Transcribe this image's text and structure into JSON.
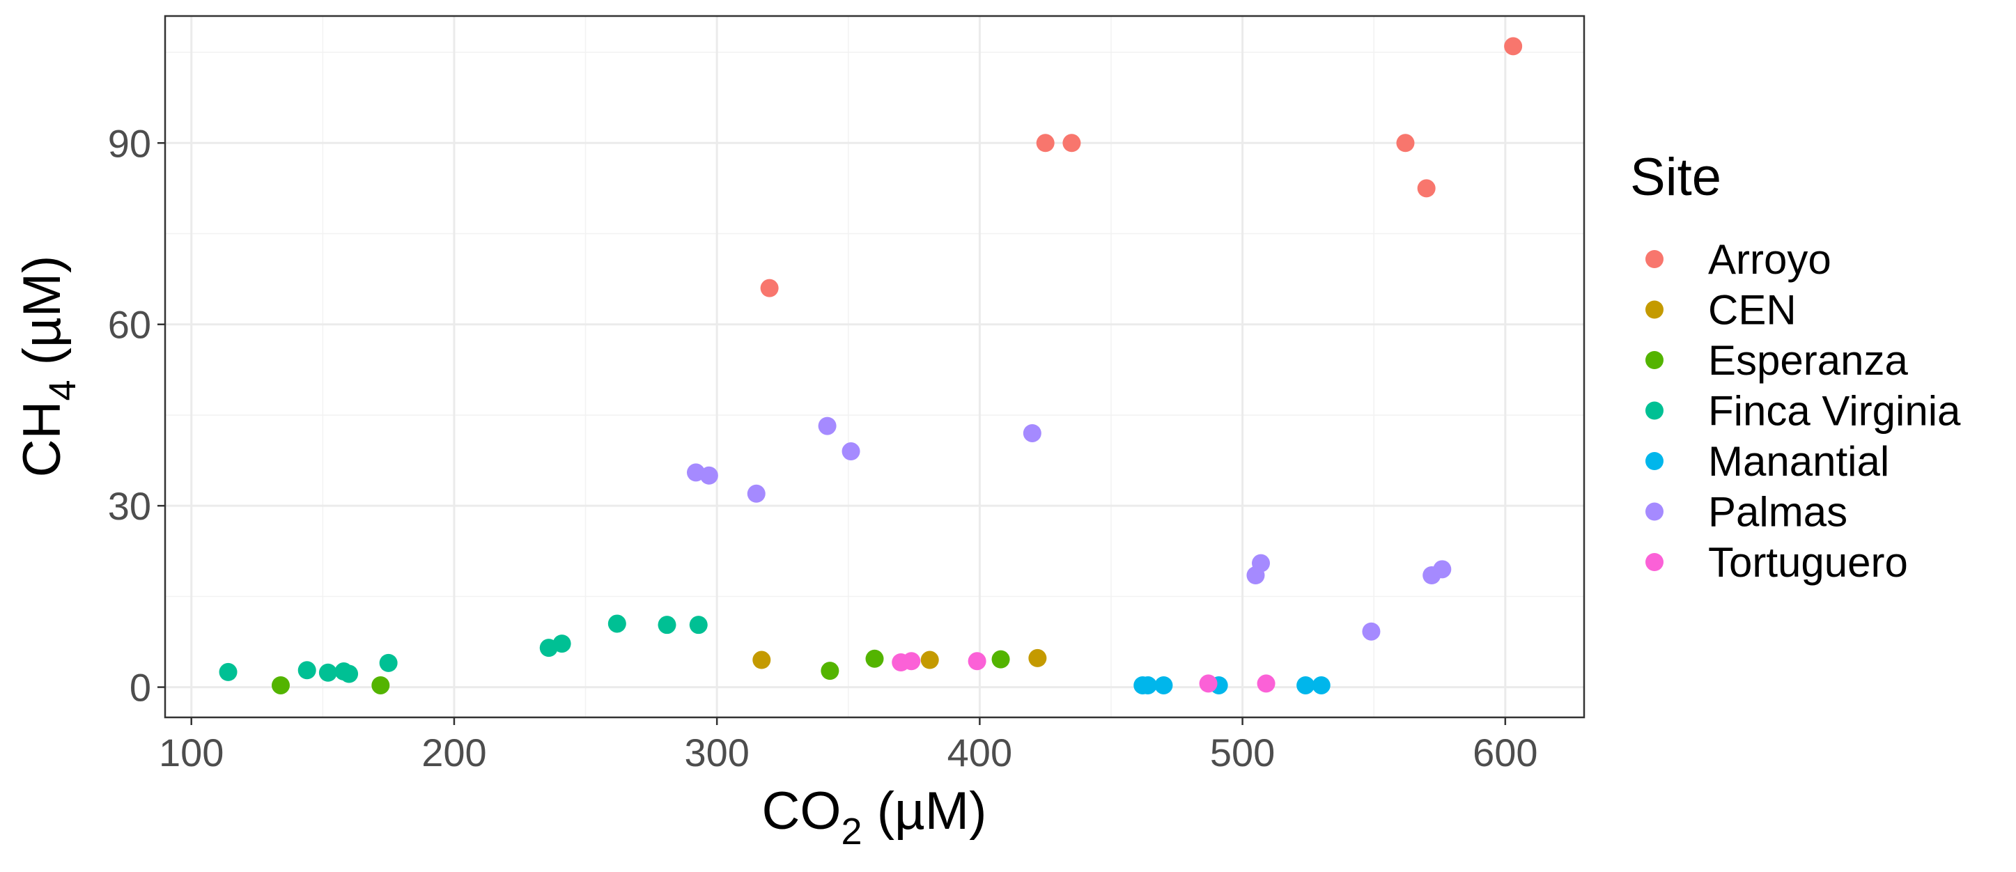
{
  "chart_data": {
    "type": "scatter",
    "title": "",
    "xlabel": {
      "base": "CO",
      "sub": "2",
      "unit": " (µM)"
    },
    "ylabel": {
      "base": "CH",
      "sub": "4",
      "unit": " (µM)"
    },
    "xlim": [
      90,
      630
    ],
    "ylim": [
      -5,
      111
    ],
    "x_ticks": [
      100,
      200,
      300,
      400,
      500,
      600
    ],
    "y_ticks": [
      0,
      30,
      60,
      90
    ],
    "grid": true,
    "legend": {
      "title": "Site",
      "position": "right"
    },
    "series": [
      {
        "name": "Arroyo",
        "color": "#F8766D",
        "points": [
          [
            320,
            66
          ],
          [
            425,
            90
          ],
          [
            435,
            90
          ],
          [
            562,
            90
          ],
          [
            570,
            82.5
          ],
          [
            603,
            106
          ]
        ]
      },
      {
        "name": "CEN",
        "color": "#C49A00",
        "points": [
          [
            317,
            4.5
          ],
          [
            381,
            4.5
          ],
          [
            422,
            4.8
          ]
        ]
      },
      {
        "name": "Esperanza",
        "color": "#53B400",
        "points": [
          [
            134,
            0.3
          ],
          [
            172,
            0.3
          ],
          [
            343,
            2.7
          ],
          [
            360,
            4.7
          ],
          [
            408,
            4.6
          ]
        ]
      },
      {
        "name": "Finca Virginia",
        "color": "#00C094",
        "points": [
          [
            114,
            2.5
          ],
          [
            144,
            2.8
          ],
          [
            152,
            2.4
          ],
          [
            158,
            2.6
          ],
          [
            160,
            2.2
          ],
          [
            175,
            4.0
          ],
          [
            236,
            6.5
          ],
          [
            241,
            7.2
          ],
          [
            262,
            10.5
          ],
          [
            281,
            10.3
          ],
          [
            293,
            10.3
          ]
        ]
      },
      {
        "name": "Manantial",
        "color": "#00B6EB",
        "points": [
          [
            462,
            0.3
          ],
          [
            464,
            0.3
          ],
          [
            470,
            0.3
          ],
          [
            491,
            0.3
          ],
          [
            524,
            0.3
          ],
          [
            530,
            0.3
          ]
        ]
      },
      {
        "name": "Palmas",
        "color": "#A58AFF",
        "points": [
          [
            292,
            35.5
          ],
          [
            297,
            35
          ],
          [
            315,
            32
          ],
          [
            342,
            43.2
          ],
          [
            351,
            39
          ],
          [
            420,
            42
          ],
          [
            505,
            18.5
          ],
          [
            507,
            20.5
          ],
          [
            549,
            9.2
          ],
          [
            572,
            18.5
          ],
          [
            576,
            19.5
          ]
        ]
      },
      {
        "name": "Tortuguero",
        "color": "#FB61D7",
        "points": [
          [
            370,
            4.1
          ],
          [
            374,
            4.3
          ],
          [
            399,
            4.3
          ],
          [
            487,
            0.6
          ],
          [
            509,
            0.6
          ]
        ]
      }
    ]
  }
}
